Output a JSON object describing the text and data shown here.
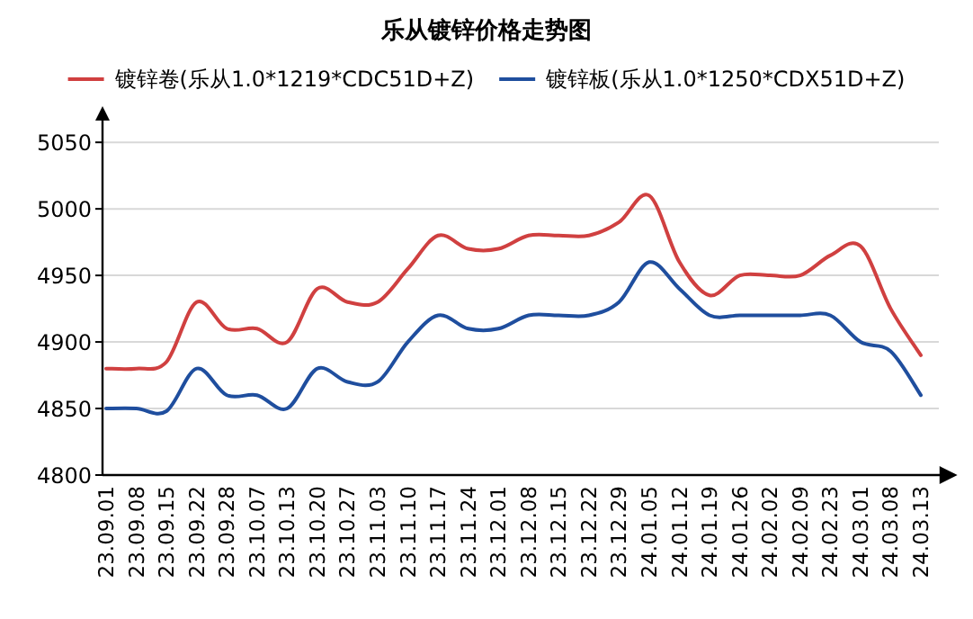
{
  "chart_data": {
    "type": "line",
    "title": "乐从镀锌价格走势图",
    "categories": [
      "23.09.01",
      "23.09.08",
      "23.09.15",
      "23.09.22",
      "23.09.28",
      "23.10.07",
      "23.10.13",
      "23.10.20",
      "23.10.27",
      "23.11.03",
      "23.11.10",
      "23.11.17",
      "23.11.24",
      "23.12.01",
      "23.12.08",
      "23.12.15",
      "23.12.22",
      "23.12.29",
      "24.01.05",
      "24.01.12",
      "24.01.19",
      "24.01.26",
      "24.02.02",
      "24.02.09",
      "24.02.23",
      "24.03.01",
      "24.03.08",
      "24.03.13"
    ],
    "series": [
      {
        "name": "镀锌卷(乐从1.0*1219*CDC51D+Z)",
        "color": "#d04040",
        "values": [
          4880,
          4880,
          4885,
          4930,
          4910,
          4910,
          4900,
          4940,
          4930,
          4930,
          4955,
          4980,
          4970,
          4970,
          4980,
          4980,
          4980,
          4990,
          5010,
          4960,
          4935,
          4950,
          4950,
          4950,
          4965,
          4972,
          4925,
          4890
        ]
      },
      {
        "name": "镀锌板(乐从1.0*1250*CDX51D+Z)",
        "color": "#1f4e9e",
        "values": [
          4850,
          4850,
          4848,
          4880,
          4860,
          4860,
          4850,
          4880,
          4870,
          4870,
          4900,
          4920,
          4910,
          4910,
          4920,
          4920,
          4920,
          4930,
          4960,
          4940,
          4920,
          4920,
          4920,
          4920,
          4920,
          4900,
          4893,
          4860
        ]
      }
    ],
    "ylim": [
      4800,
      5065
    ],
    "yticks": [
      4800,
      4850,
      4900,
      4950,
      5000,
      5050
    ],
    "grid": "y",
    "legend": "top"
  }
}
